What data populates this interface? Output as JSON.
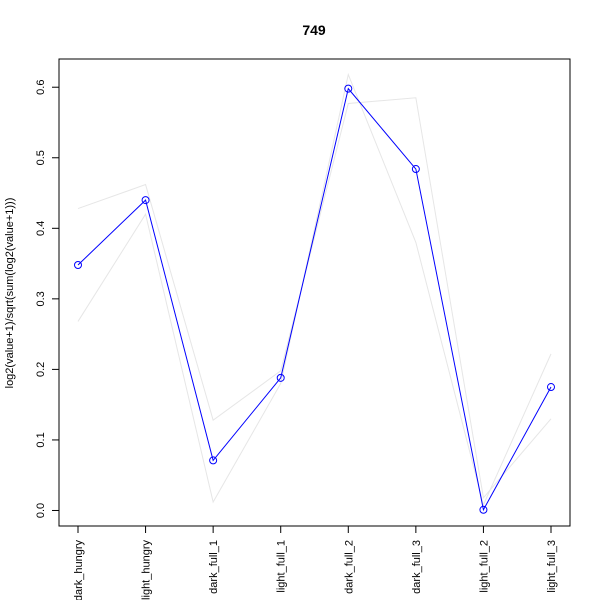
{
  "chart_data": {
    "type": "line",
    "title": "749",
    "xlabel": "",
    "ylabel": "log2(value+1)/sqrt(sum(log2(value+1)))",
    "categories": [
      "dark_hungry",
      "light_hungry",
      "dark_full_1",
      "light_full_1",
      "dark_full_2",
      "dark_full_3",
      "light_full_2",
      "light_full_3"
    ],
    "ylim": [
      -0.022,
      0.64
    ],
    "yticks": [
      0.0,
      0.1,
      0.2,
      0.3,
      0.4,
      0.5,
      0.6
    ],
    "grid": false,
    "legend": "none",
    "series": [
      {
        "color": "#0000ff",
        "markers": "open-circle",
        "values": [
          0.348,
          0.44,
          0.071,
          0.188,
          0.598,
          0.484,
          0.001,
          0.175
        ]
      }
    ],
    "background_series": [
      {
        "color": "#e6e6e6",
        "values": [
          0.428,
          0.462,
          0.128,
          0.198,
          0.577,
          0.585,
          0.018,
          0.13
        ]
      },
      {
        "color": "#e6e6e6",
        "values": [
          0.268,
          0.42,
          0.012,
          0.18,
          0.618,
          0.38,
          0.008,
          0.222
        ]
      }
    ]
  }
}
